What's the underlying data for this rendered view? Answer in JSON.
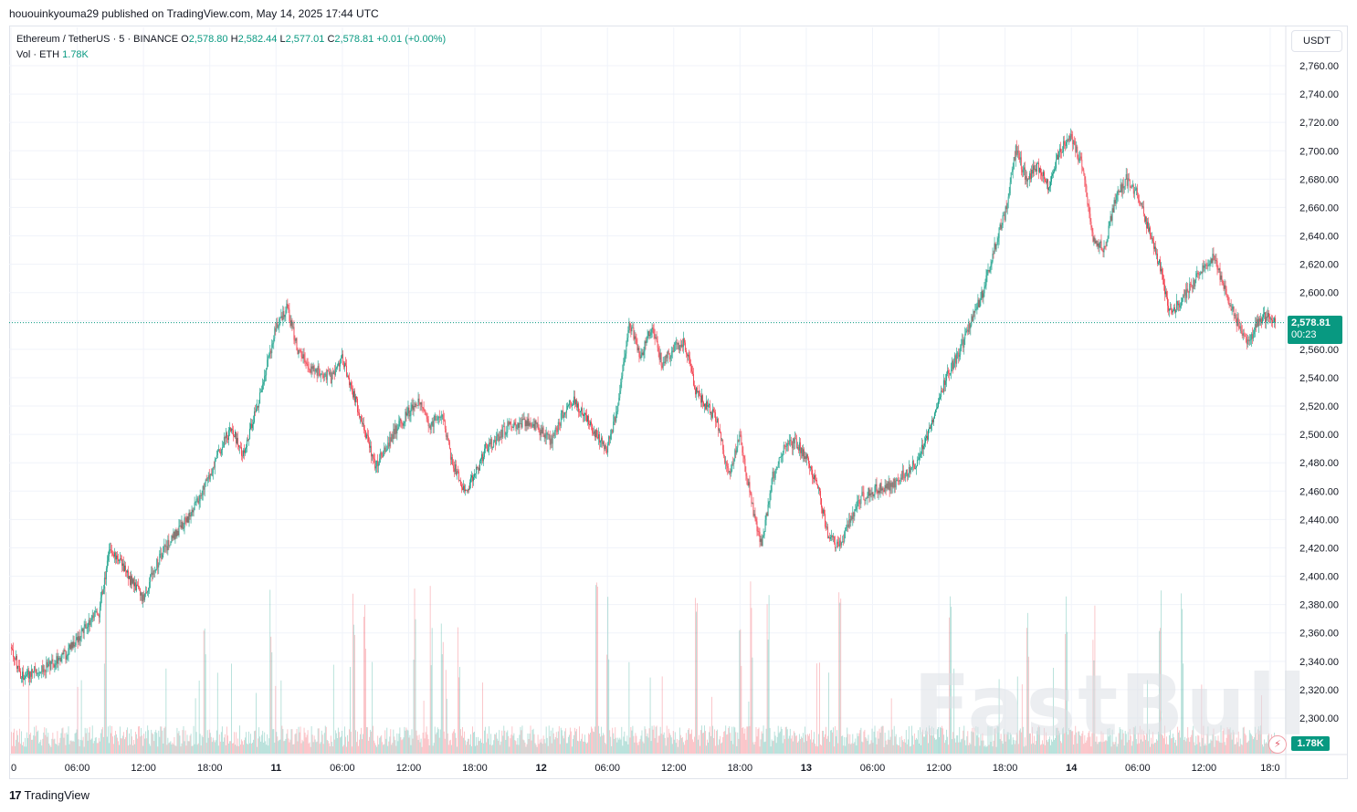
{
  "header": {
    "published": "hououinkyouma29 published on TradingView.com, May 14, 2025 17:44 UTC"
  },
  "legend": {
    "symbol": "Ethereum / TetherUS · 5 · BINANCE",
    "o_label": "O",
    "o": "2,578.80",
    "h_label": "H",
    "h": "2,582.44",
    "l_label": "L",
    "l": "2,577.01",
    "c_label": "C",
    "c": "2,578.81",
    "change": "+0.01 (+0.00%)",
    "vol_label": "Vol · ETH",
    "vol": "1.78K"
  },
  "currency_button": "USDT",
  "last_price": {
    "value": "2,578.81",
    "countdown": "00:23"
  },
  "volume_badge": "1.78K",
  "footer": {
    "logo": "TradingView"
  },
  "watermark": "FastBull",
  "chart_data": {
    "type": "candlestick",
    "symbol": "ETHUSDT",
    "interval": "5",
    "y_axis": {
      "min": 2290,
      "max": 2770,
      "ticks": [
        2300,
        2320,
        2340,
        2360,
        2380,
        2400,
        2420,
        2440,
        2460,
        2480,
        2500,
        2520,
        2540,
        2560,
        2580,
        2600,
        2620,
        2640,
        2660,
        2680,
        2700,
        2720,
        2740,
        2760
      ],
      "tick_labels": [
        "2,300.00",
        "2,320.00",
        "2,340.00",
        "2,360.00",
        "2,380.00",
        "2,400.00",
        "2,420.00",
        "2,440.00",
        "2,460.00",
        "2,480.00",
        "2,500.00",
        "2,520.00",
        "2,540.00",
        "2,560.00",
        "2,580.00",
        "2,600.00",
        "2,620.00",
        "2,640.00",
        "2,660.00",
        "2,680.00",
        "2,700.00",
        "2,720.00",
        "2,740.00",
        "2,760.00"
      ]
    },
    "x_axis": {
      "tick_labels": [
        "0",
        "06:00",
        "12:00",
        "18:00",
        "11",
        "06:00",
        "12:00",
        "18:00",
        "12",
        "06:00",
        "12:00",
        "18:00",
        "13",
        "06:00",
        "12:00",
        "18:00",
        "14",
        "06:00",
        "12:00",
        "18:0"
      ],
      "tick_hours": [
        0,
        6,
        12,
        18,
        24,
        30,
        36,
        42,
        48,
        54,
        60,
        66,
        72,
        78,
        84,
        90,
        96,
        102,
        108,
        114
      ],
      "bold_ticks": [
        "11",
        "12",
        "13",
        "14"
      ],
      "start": "2025-05-10 00:00",
      "end_hours": 114.5
    },
    "last_close": 2578.81,
    "path_hours": [
      0,
      1,
      3,
      5,
      7,
      8,
      9,
      10,
      11,
      12,
      13,
      14,
      16,
      18,
      19,
      20,
      21,
      22,
      23,
      24,
      25,
      26,
      27,
      29,
      30,
      31,
      33,
      35,
      36,
      37,
      38,
      39,
      40,
      41,
      42,
      43,
      45,
      47,
      49,
      50,
      51,
      53,
      54,
      55,
      56,
      57,
      58,
      59,
      60,
      61,
      62,
      64,
      65,
      66,
      67,
      68,
      69,
      70,
      71,
      72,
      73,
      74,
      75,
      76,
      77,
      78,
      80,
      82,
      83,
      84,
      85,
      86,
      87,
      88,
      89,
      90,
      91,
      92,
      93,
      94,
      95,
      96,
      97,
      98,
      99,
      100,
      101,
      102,
      103,
      104,
      105,
      106,
      107,
      108,
      109,
      110,
      111,
      112,
      113,
      114,
      114.5
    ],
    "path_prices": [
      2350,
      2330,
      2335,
      2345,
      2365,
      2375,
      2420,
      2410,
      2395,
      2385,
      2405,
      2420,
      2440,
      2470,
      2490,
      2505,
      2485,
      2510,
      2540,
      2575,
      2590,
      2560,
      2548,
      2540,
      2555,
      2530,
      2478,
      2505,
      2515,
      2525,
      2505,
      2515,
      2480,
      2460,
      2470,
      2490,
      2505,
      2510,
      2495,
      2515,
      2525,
      2500,
      2490,
      2520,
      2580,
      2555,
      2575,
      2550,
      2560,
      2565,
      2530,
      2510,
      2470,
      2500,
      2455,
      2420,
      2470,
      2490,
      2495,
      2485,
      2465,
      2430,
      2420,
      2440,
      2455,
      2460,
      2465,
      2480,
      2500,
      2525,
      2545,
      2560,
      2580,
      2600,
      2630,
      2655,
      2700,
      2680,
      2690,
      2675,
      2700,
      2710,
      2690,
      2640,
      2630,
      2665,
      2680,
      2670,
      2645,
      2620,
      2585,
      2595,
      2605,
      2620,
      2625,
      2600,
      2580,
      2565,
      2580,
      2585,
      2578.81
    ],
    "volume_spikes_hours": [
      8.5,
      17.5,
      23.5,
      31,
      32,
      36.5,
      38,
      39,
      40.5,
      53,
      54,
      62,
      66,
      67,
      68.5,
      75,
      85,
      92,
      95.5,
      98,
      104,
      106
    ],
    "volume_base": 25
  }
}
